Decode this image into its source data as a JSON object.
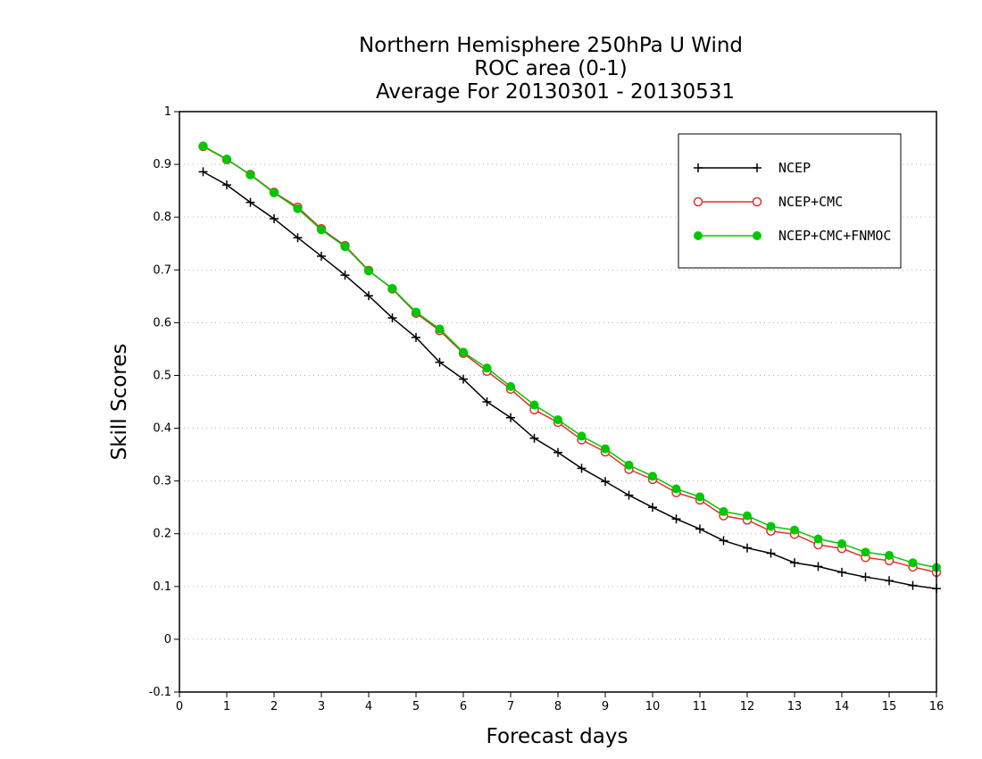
{
  "chart_data": {
    "type": "line",
    "title_lines": [
      "Northern Hemisphere 250hPa U Wind",
      "ROC area (0-1)",
      "Average For 20130301 - 20130531"
    ],
    "xlabel": "Forecast days",
    "ylabel": "Skill Scores",
    "xlim": [
      0,
      16
    ],
    "ylim": [
      -0.1,
      1
    ],
    "xticks": [
      0,
      1,
      2,
      3,
      4,
      5,
      6,
      7,
      8,
      9,
      10,
      11,
      12,
      13,
      14,
      15,
      16
    ],
    "yticks": [
      -0.1,
      0,
      0.1,
      0.2,
      0.3,
      0.4,
      0.5,
      0.6,
      0.7,
      0.8,
      0.9,
      1
    ],
    "ytick_labels": [
      "-0.1",
      "0",
      "0.1",
      "0.2",
      "0.3",
      "0.4",
      "0.5",
      "0.6",
      "0.7",
      "0.8",
      "0.9",
      "1"
    ],
    "grid": "horizontal dotted",
    "legend_position": "top-right",
    "x": [
      0.5,
      1,
      1.5,
      2,
      2.5,
      3,
      3.5,
      4,
      4.5,
      5,
      5.5,
      6,
      6.5,
      7,
      7.5,
      8,
      8.5,
      9,
      9.5,
      10,
      10.5,
      11,
      11.5,
      12,
      12.5,
      13,
      13.5,
      14,
      14.5,
      15,
      15.5,
      16
    ],
    "series": [
      {
        "name": "NCEP",
        "color": "#000000",
        "marker": "plus",
        "values": [
          0.886,
          0.861,
          0.828,
          0.797,
          0.761,
          0.726,
          0.69,
          0.651,
          0.609,
          0.572,
          0.525,
          0.493,
          0.45,
          0.42,
          0.381,
          0.354,
          0.324,
          0.299,
          0.273,
          0.25,
          0.228,
          0.209,
          0.187,
          0.173,
          0.163,
          0.145,
          0.138,
          0.127,
          0.118,
          0.111,
          0.102,
          0.096
        ]
      },
      {
        "name": "NCEP+CMC",
        "color": "#e03030",
        "marker": "open-circle",
        "values": [
          0.934,
          0.909,
          0.881,
          0.847,
          0.819,
          0.778,
          0.746,
          0.699,
          0.664,
          0.618,
          0.585,
          0.542,
          0.508,
          0.474,
          0.435,
          0.411,
          0.378,
          0.355,
          0.322,
          0.303,
          0.278,
          0.264,
          0.234,
          0.226,
          0.205,
          0.199,
          0.179,
          0.172,
          0.155,
          0.149,
          0.137,
          0.127
        ]
      },
      {
        "name": "NCEP+CMC+FNMOC",
        "color": "#00c800",
        "marker": "filled-circle",
        "values": [
          0.935,
          0.91,
          0.88,
          0.846,
          0.816,
          0.776,
          0.744,
          0.698,
          0.665,
          0.62,
          0.588,
          0.544,
          0.514,
          0.479,
          0.444,
          0.416,
          0.385,
          0.361,
          0.33,
          0.309,
          0.285,
          0.27,
          0.242,
          0.234,
          0.214,
          0.207,
          0.19,
          0.181,
          0.165,
          0.159,
          0.145,
          0.136
        ]
      }
    ]
  }
}
